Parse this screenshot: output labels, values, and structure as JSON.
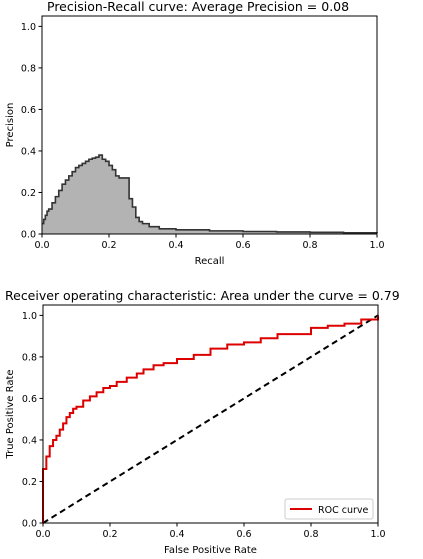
{
  "chart_data": [
    {
      "type": "area",
      "title": "Precision-Recall curve: Average Precision =         0.08",
      "xlabel": "Recall",
      "ylabel": "Precision",
      "xlim": [
        0,
        1.0
      ],
      "ylim": [
        0,
        1.05
      ],
      "xticks": [
        "0.0",
        "0.2",
        "0.4",
        "0.6",
        "0.8",
        "1.0"
      ],
      "yticks": [
        "0.0",
        "0.2",
        "0.4",
        "0.6",
        "0.8",
        "1.0"
      ],
      "grid": false,
      "fill_color": "#b3b3b3",
      "line_color": "#333333",
      "series": [
        {
          "x": [
            0.0,
            0.005,
            0.01,
            0.015,
            0.02,
            0.03,
            0.04,
            0.05,
            0.06,
            0.07,
            0.08,
            0.09,
            0.1,
            0.11,
            0.12,
            0.13,
            0.14,
            0.15,
            0.16,
            0.17,
            0.18,
            0.19,
            0.2,
            0.21,
            0.22,
            0.23,
            0.24,
            0.25,
            0.255,
            0.26,
            0.27,
            0.28,
            0.29,
            0.3,
            0.32,
            0.35,
            0.4,
            0.5,
            0.6,
            0.7,
            0.8,
            0.9,
            1.0
          ],
          "y": [
            0.05,
            0.07,
            0.09,
            0.11,
            0.12,
            0.15,
            0.18,
            0.21,
            0.24,
            0.26,
            0.28,
            0.3,
            0.32,
            0.33,
            0.34,
            0.35,
            0.36,
            0.365,
            0.37,
            0.38,
            0.36,
            0.35,
            0.33,
            0.31,
            0.28,
            0.27,
            0.27,
            0.27,
            0.27,
            0.17,
            0.13,
            0.08,
            0.06,
            0.05,
            0.035,
            0.025,
            0.02,
            0.015,
            0.012,
            0.01,
            0.008,
            0.006,
            0.005
          ]
        }
      ]
    },
    {
      "type": "line",
      "title": "Receiver operating characteristic: Area under the         curve = 0.79",
      "xlabel": "False Positive Rate",
      "ylabel": "True Positive Rate",
      "xlim": [
        0,
        1.0
      ],
      "ylim": [
        0,
        1.05
      ],
      "xticks": [
        "0.0",
        "0.2",
        "0.4",
        "0.6",
        "0.8",
        "1.0"
      ],
      "yticks": [
        "0.0",
        "0.2",
        "0.4",
        "0.6",
        "0.8",
        "1.0"
      ],
      "grid": false,
      "legend_position": "lower-right",
      "series": [
        {
          "name": "ROC curve",
          "color": "#dd0000",
          "x": [
            0.0,
            0.0,
            0.01,
            0.02,
            0.03,
            0.04,
            0.05,
            0.06,
            0.07,
            0.08,
            0.09,
            0.1,
            0.12,
            0.14,
            0.16,
            0.18,
            0.2,
            0.22,
            0.25,
            0.28,
            0.3,
            0.33,
            0.36,
            0.4,
            0.45,
            0.5,
            0.55,
            0.6,
            0.65,
            0.7,
            0.75,
            0.8,
            0.85,
            0.9,
            0.95,
            1.0
          ],
          "y": [
            0.0,
            0.26,
            0.32,
            0.37,
            0.4,
            0.42,
            0.45,
            0.48,
            0.51,
            0.53,
            0.55,
            0.56,
            0.59,
            0.61,
            0.63,
            0.65,
            0.66,
            0.68,
            0.7,
            0.72,
            0.74,
            0.76,
            0.77,
            0.79,
            0.81,
            0.84,
            0.86,
            0.87,
            0.89,
            0.91,
            0.91,
            0.94,
            0.95,
            0.96,
            0.98,
            1.0
          ]
        },
        {
          "color": "#000000",
          "style": "dashed",
          "x": [
            0.0,
            1.0
          ],
          "y": [
            0.0,
            1.0
          ]
        }
      ]
    }
  ]
}
